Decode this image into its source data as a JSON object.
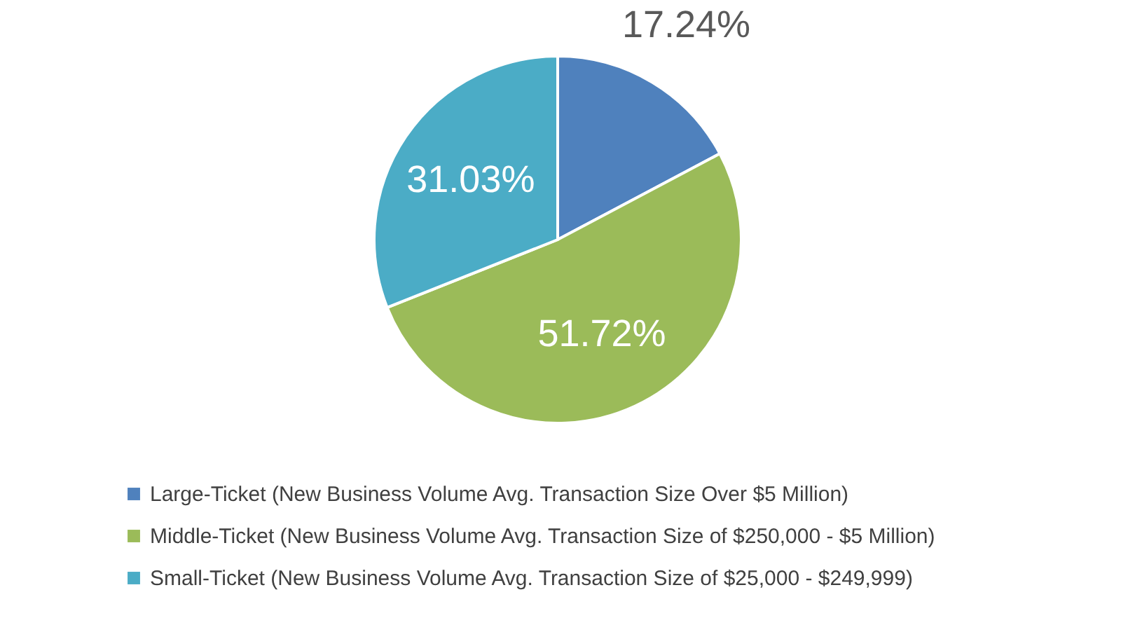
{
  "chart_data": {
    "type": "pie",
    "categories": [
      "Large-Ticket (New Business Volume Avg. Transaction Size Over $5 Million)",
      "Middle-Ticket (New Business Volume Avg. Transaction Size of $250,000 - $5 Million)",
      "Small-Ticket (New Business Volume Avg. Transaction Size of $25,000 - $249,999)"
    ],
    "values": [
      17.24,
      51.72,
      31.03
    ],
    "colors": [
      "#4f81bd",
      "#9bbb59",
      "#4bacc6"
    ],
    "value_labels": [
      "17.24%",
      "51.72%",
      "31.03%"
    ],
    "legend": "bottom"
  }
}
